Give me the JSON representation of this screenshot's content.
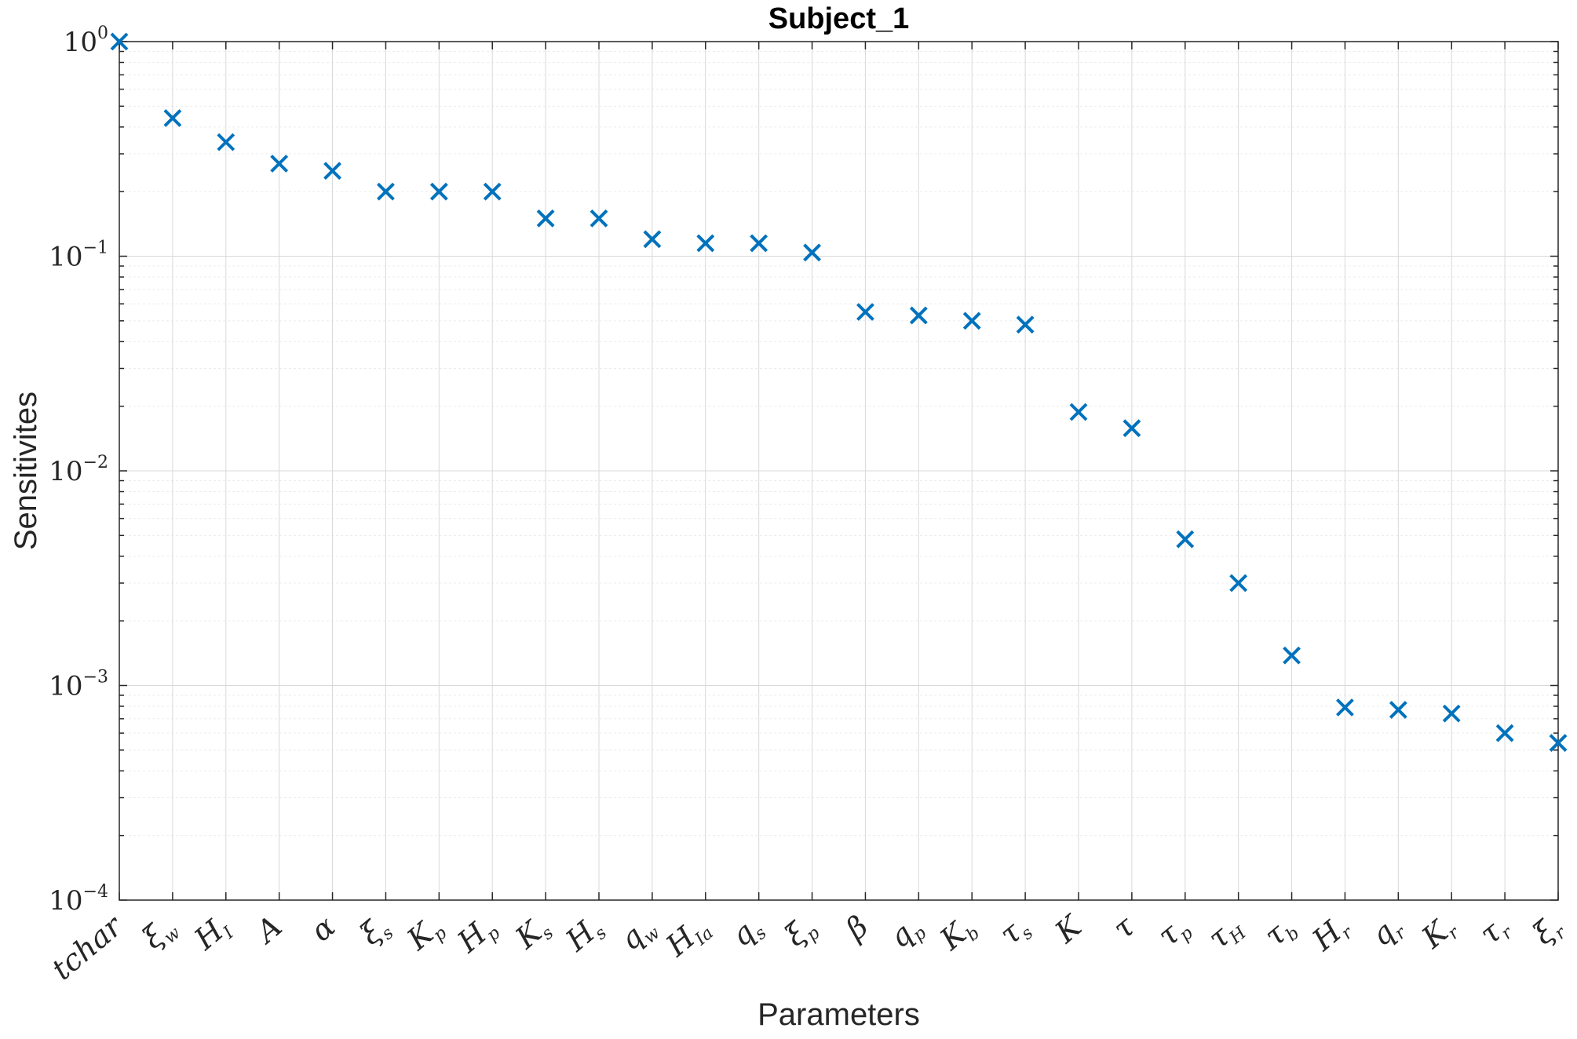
{
  "chart_data": {
    "type": "scatter",
    "title": "Subject_1",
    "xlabel": "Parameters",
    "ylabel": "Sensitivites",
    "yscale": "log",
    "ylim": [
      0.0001,
      1
    ],
    "yticks": [
      {
        "value": 1,
        "base": "10",
        "exp": "0"
      },
      {
        "value": 0.1,
        "base": "10",
        "exp": "−1"
      },
      {
        "value": 0.01,
        "base": "10",
        "exp": "−2"
      },
      {
        "value": 0.001,
        "base": "10",
        "exp": "−3"
      },
      {
        "value": 0.0001,
        "base": "10",
        "exp": "−4"
      }
    ],
    "grid": true,
    "marker": "x",
    "color": "#0072BD",
    "categories": [
      {
        "main": "tchar",
        "sub": ""
      },
      {
        "main": "ξ",
        "sub": "w"
      },
      {
        "main": "H",
        "sub": "I"
      },
      {
        "main": "A",
        "sub": ""
      },
      {
        "main": "α",
        "sub": ""
      },
      {
        "main": "ξ",
        "sub": "s"
      },
      {
        "main": "K",
        "sub": "p"
      },
      {
        "main": "H",
        "sub": "p"
      },
      {
        "main": "K",
        "sub": "s"
      },
      {
        "main": "H",
        "sub": "s"
      },
      {
        "main": "q",
        "sub": "w"
      },
      {
        "main": "H",
        "sub": "Ia"
      },
      {
        "main": "q",
        "sub": "s"
      },
      {
        "main": "ξ",
        "sub": "p"
      },
      {
        "main": "β",
        "sub": ""
      },
      {
        "main": "q",
        "sub": "p"
      },
      {
        "main": "K",
        "sub": "b"
      },
      {
        "main": "τ",
        "sub": "s"
      },
      {
        "main": "K",
        "sub": ""
      },
      {
        "main": "τ",
        "sub": ""
      },
      {
        "main": "τ",
        "sub": "p"
      },
      {
        "main": "τ",
        "sub": "H"
      },
      {
        "main": "τ",
        "sub": "b"
      },
      {
        "main": "H",
        "sub": "r"
      },
      {
        "main": "q",
        "sub": "r"
      },
      {
        "main": "K",
        "sub": "r"
      },
      {
        "main": "τ",
        "sub": "r"
      },
      {
        "main": "ξ",
        "sub": "r"
      }
    ],
    "values": [
      1.0,
      0.44,
      0.34,
      0.27,
      0.25,
      0.2,
      0.2,
      0.2,
      0.15,
      0.15,
      0.12,
      0.115,
      0.115,
      0.104,
      0.055,
      0.053,
      0.05,
      0.048,
      0.0188,
      0.0158,
      0.0048,
      0.003,
      0.00138,
      0.00079,
      0.00077,
      0.00074,
      0.0006,
      0.00054
    ]
  }
}
